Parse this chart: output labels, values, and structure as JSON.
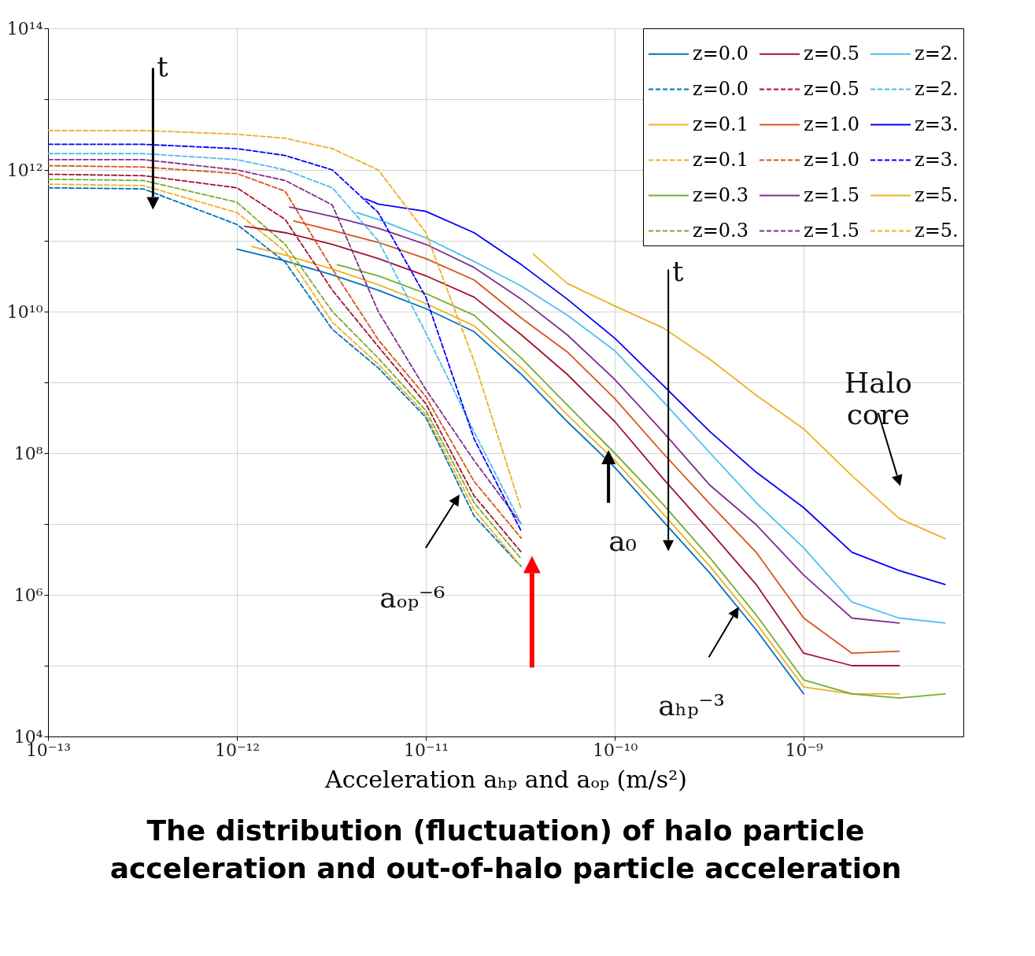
{
  "chart_data": {
    "type": "line",
    "title": "The distribution (fluctuation) of halo particle acceleration and out-of-halo particle acceleration",
    "xlabel": "Acceleration aₕₚ and aₒₚ (m/s²)",
    "log": "xy",
    "grid": true,
    "legend": "top right",
    "xlim": [
      1e-13,
      7e-09
    ],
    "ylim": [
      10000,
      100000000000000.0
    ],
    "xticks": [
      {
        "value": 1e-13,
        "label": "10⁻¹³"
      },
      {
        "value": 1e-12,
        "label": "10⁻¹²"
      },
      {
        "value": 1e-11,
        "label": "10⁻¹¹"
      },
      {
        "value": 1e-10,
        "label": "10⁻¹⁰"
      },
      {
        "value": 1e-09,
        "label": "10⁻⁹"
      }
    ],
    "yticks": [
      {
        "value": 10000,
        "label": "10⁴"
      },
      {
        "value": 100000,
        "label": null
      },
      {
        "value": 1000000,
        "label": "10⁶"
      },
      {
        "value": 10000000,
        "label": null
      },
      {
        "value": 100000000,
        "label": "10⁸"
      },
      {
        "value": 1000000000,
        "label": null
      },
      {
        "value": 10000000000,
        "label": "10¹⁰"
      },
      {
        "value": 100000000000,
        "label": null
      },
      {
        "value": 1000000000000,
        "label": "10¹²"
      },
      {
        "value": 10000000000000,
        "label": null
      },
      {
        "value": 100000000000000,
        "label": "10¹⁴"
      }
    ],
    "series": [
      {
        "name": "z=0.0",
        "color": "#0072bd",
        "line_style": "solid",
        "x": [
          1e-12,
          1.8e-12,
          3.2e-12,
          5.6e-12,
          1e-11,
          1.8e-11,
          3.2e-11,
          5.6e-11,
          1e-10,
          1.8e-10,
          3.2e-10,
          5.6e-10,
          1e-09
        ],
        "values": [
          76000000000.0,
          52000000000.0,
          33000000000.0,
          20000000000.0,
          11000000000.0,
          5200000000.0,
          1300000000.0,
          280000000.0,
          63000000.0,
          11000000.0,
          2000000.0,
          320000.0,
          40000.0
        ]
      },
      {
        "name": "z=0.0",
        "color": "#0072bd",
        "line_style": "dashed",
        "x": [
          1e-13,
          3.2e-13,
          1e-12,
          1.8e-12,
          3.2e-12,
          5.6e-12,
          1e-11,
          1.8e-11,
          3.2e-11
        ],
        "values": [
          560000000000.0,
          540000000000.0,
          170000000000.0,
          50000000000.0,
          5600000000.0,
          1600000000.0,
          320000000.0,
          13000000.0,
          2500000.0
        ]
      },
      {
        "name": "z=0.1",
        "color": "#edb120",
        "line_style": "solid",
        "x": [
          1.2e-12,
          1.8e-12,
          3.2e-12,
          5.6e-12,
          1e-11,
          1.8e-11,
          3.2e-11,
          5.6e-11,
          1e-10,
          1.8e-10,
          3.2e-10,
          5.6e-10,
          1e-09,
          1.8e-09,
          3.2e-09
        ],
        "values": [
          83000000000.0,
          63000000000.0,
          40000000000.0,
          24000000000.0,
          13000000000.0,
          6300000000.0,
          1600000000.0,
          350000000.0,
          79000000.0,
          14000000.0,
          2500000.0,
          400000.0,
          50000.0,
          40000.0,
          40000.0
        ]
      },
      {
        "name": "z=0.1",
        "color": "#edb120",
        "line_style": "dashed",
        "x": [
          1e-13,
          3.2e-13,
          1e-12,
          1.8e-12,
          3.2e-12,
          5.6e-12,
          1e-11,
          1.8e-11,
          3.2e-11
        ],
        "values": [
          630000000000.0,
          600000000000.0,
          250000000000.0,
          71000000000.0,
          7100000000.0,
          1800000000.0,
          350000000.0,
          16000000.0,
          2500000.0
        ]
      },
      {
        "name": "z=0.3",
        "color": "#77ac30",
        "line_style": "solid",
        "x": [
          3.4e-12,
          5.6e-12,
          1e-11,
          1.8e-11,
          3.2e-11,
          5.6e-11,
          1e-10,
          1.8e-10,
          3.2e-10,
          5.6e-10,
          1e-09,
          1.8e-09,
          3.2e-09,
          5.6e-09
        ],
        "values": [
          46000000000.0,
          32000000000.0,
          18000000000.0,
          8900000000.0,
          2200000000.0,
          480000000.0,
          100000000.0,
          19000000.0,
          3300000.0,
          520000.0,
          63000.0,
          40000.0,
          35000.0,
          40000.0
        ]
      },
      {
        "name": "z=0.3",
        "color": "#77ac30",
        "line_style": "dashed",
        "x": [
          1e-13,
          3.2e-13,
          1e-12,
          1.8e-12,
          3.2e-12,
          5.6e-12,
          1e-11,
          1.8e-11,
          3.2e-11
        ],
        "values": [
          740000000000.0,
          710000000000.0,
          350000000000.0,
          89000000000.0,
          10000000000.0,
          2200000000.0,
          400000000.0,
          20000000.0,
          3200000.0
        ]
      },
      {
        "name": "z=0.5",
        "color": "#a2142f",
        "line_style": "solid",
        "x": [
          1.1e-12,
          1.8e-12,
          3.2e-12,
          5.6e-12,
          1e-11,
          1.8e-11,
          3.2e-11,
          5.6e-11,
          1e-10,
          1.8e-10,
          3.2e-10,
          5.6e-10,
          1e-09,
          1.8e-09,
          3.2e-09
        ],
        "values": [
          160000000000.0,
          130000000000.0,
          89000000000.0,
          56000000000.0,
          32000000000.0,
          16000000000.0,
          4700000000.0,
          1300000000.0,
          280000000.0,
          44000000.0,
          7800000.0,
          1400000.0,
          150000.0,
          100000.0,
          100000.0
        ]
      },
      {
        "name": "z=0.5",
        "color": "#a2142f",
        "line_style": "dashed",
        "x": [
          1e-13,
          3.2e-13,
          1e-12,
          1.8e-12,
          3.2e-12,
          5.6e-12,
          1e-11,
          1.8e-11,
          3.2e-11
        ],
        "values": [
          870000000000.0,
          830000000000.0,
          560000000000.0,
          200000000000.0,
          20000000000.0,
          3200000000.0,
          500000000.0,
          25000000.0,
          4000000.0
        ]
      },
      {
        "name": "z=1.0",
        "color": "#d95319",
        "line_style": "solid",
        "x": [
          2e-12,
          3.2e-12,
          5.6e-12,
          1e-11,
          1.8e-11,
          3.2e-11,
          5.6e-11,
          1e-10,
          1.8e-10,
          3.2e-10,
          5.6e-10,
          1e-09,
          1.8e-09,
          3.2e-09
        ],
        "values": [
          190000000000.0,
          140000000000.0,
          95000000000.0,
          56000000000.0,
          28000000000.0,
          8100000000.0,
          2700000000.0,
          590000000.0,
          100000000.0,
          19000000.0,
          4000000.0,
          470000.0,
          150000.0,
          160000.0
        ]
      },
      {
        "name": "z=1.0",
        "color": "#d95319",
        "line_style": "dashed",
        "x": [
          1e-13,
          3.2e-13,
          1e-12,
          1.8e-12,
          3.2e-12,
          5.6e-12,
          1e-11,
          1.8e-11,
          3.2e-11
        ],
        "values": [
          1150000000000.0,
          1100000000000.0,
          890000000000.0,
          500000000000.0,
          40000000000.0,
          4000000000.0,
          630000000.0,
          40000000.0,
          6300000.0
        ]
      },
      {
        "name": "z=1.5",
        "color": "#7e2f8e",
        "line_style": "solid",
        "x": [
          1.9e-12,
          3.2e-12,
          5.6e-12,
          1e-11,
          1.8e-11,
          3.2e-11,
          5.6e-11,
          1e-10,
          1.8e-10,
          3.2e-10,
          5.6e-10,
          1e-09,
          1.8e-09,
          3.2e-09
        ],
        "values": [
          300000000000.0,
          220000000000.0,
          150000000000.0,
          89000000000.0,
          42000000000.0,
          15000000000.0,
          4700000000.0,
          1100000000.0,
          200000000.0,
          35000000.0,
          9800000.0,
          1900000.0,
          470000.0,
          400000.0
        ]
      },
      {
        "name": "z=1.5",
        "color": "#7e2f8e",
        "line_style": "dashed",
        "x": [
          1e-13,
          3.2e-13,
          1e-12,
          1.8e-12,
          3.2e-12,
          5.6e-12,
          1e-11,
          1.8e-11,
          3.2e-11
        ],
        "values": [
          1400000000000.0,
          1400000000000.0,
          1000000000000.0,
          710000000000.0,
          320000000000.0,
          10000000000.0,
          790000000.0,
          79000000.0,
          10000000.0
        ]
      },
      {
        "name": "z=2.",
        "color": "#4dbeee",
        "line_style": "solid",
        "x": [
          4.3e-12,
          5.6e-12,
          1e-11,
          1.8e-11,
          3.2e-11,
          5.6e-11,
          1e-10,
          1.8e-10,
          3.2e-10,
          5.6e-10,
          1e-09,
          1.8e-09,
          3.2e-09,
          5.6e-09
        ],
        "values": [
          250000000000.0,
          200000000000.0,
          110000000000.0,
          51000000000.0,
          23000000000.0,
          8900000000.0,
          2800000000.0,
          540000000.0,
          100000000.0,
          20000000.0,
          4600000.0,
          790000.0,
          470000.0,
          400000.0
        ]
      },
      {
        "name": "z=2.",
        "color": "#4dbeee",
        "line_style": "dashed",
        "x": [
          1e-13,
          3.2e-13,
          1e-12,
          1.8e-12,
          3.2e-12,
          5.6e-12,
          1e-11,
          1.8e-11,
          3.2e-11
        ],
        "values": [
          1700000000000.0,
          1700000000000.0,
          1400000000000.0,
          1000000000000.0,
          560000000000.0,
          100000000000.0,
          5000000000.0,
          200000000.0,
          10000000.0
        ]
      },
      {
        "name": "z=3.",
        "color": "#0000ff",
        "line_style": "solid",
        "x": [
          4.8e-12,
          5.6e-12,
          1e-11,
          1.8e-11,
          3.2e-11,
          5.6e-11,
          1e-10,
          1.8e-10,
          3.2e-10,
          5.6e-10,
          1e-09,
          1.8e-09,
          3.2e-09,
          5.6e-09
        ],
        "values": [
          390000000000.0,
          330000000000.0,
          260000000000.0,
          130000000000.0,
          46000000000.0,
          15000000000.0,
          4200000000.0,
          910000000.0,
          200000000.0,
          54000000.0,
          17000000.0,
          4000000.0,
          2200000.0,
          1400000.0
        ]
      },
      {
        "name": "z=3.",
        "color": "#0000ff",
        "line_style": "dashed",
        "x": [
          1e-13,
          3.2e-13,
          1e-12,
          1.8e-12,
          3.2e-12,
          5.6e-12,
          1e-11,
          1.8e-11,
          3.2e-11
        ],
        "values": [
          2300000000000.0,
          2300000000000.0,
          2000000000000.0,
          1600000000000.0,
          1000000000000.0,
          250000000000.0,
          16000000000.0,
          160000000.0,
          7900000.0
        ]
      },
      {
        "name": "z=5.",
        "color": "#edb120",
        "line_style": "solid",
        "x": [
          3.7e-11,
          5.6e-11,
          1e-10,
          1.8e-10,
          3.2e-10,
          5.6e-10,
          1e-09,
          1.8e-09,
          3.2e-09,
          5.6e-09
        ],
        "values": [
          65000000000.0,
          25000000000.0,
          12000000000.0,
          5900000000.0,
          2100000000.0,
          660000000.0,
          220000000.0,
          48000000.0,
          12000000.0,
          6200000.0
        ]
      },
      {
        "name": "z=5.",
        "color": "#edb120",
        "line_style": "dashed",
        "x": [
          1e-13,
          3.2e-13,
          1e-12,
          1.8e-12,
          3.2e-12,
          5.6e-12,
          1e-11,
          1.8e-11,
          3.2e-11
        ],
        "values": [
          3600000000000.0,
          3600000000000.0,
          3200000000000.0,
          2800000000000.0,
          2000000000000.0,
          1000000000000.0,
          130000000000.0,
          2000000000.0,
          16000000.0
        ]
      }
    ],
    "annotations": [
      "t",
      "t",
      "Halo\ncore",
      "aₒₚ⁻⁶",
      {
        "text": "a₀",
        "x": 1e-10,
        "y": 63000000.0
      },
      "aₕₚ⁻³"
    ]
  }
}
